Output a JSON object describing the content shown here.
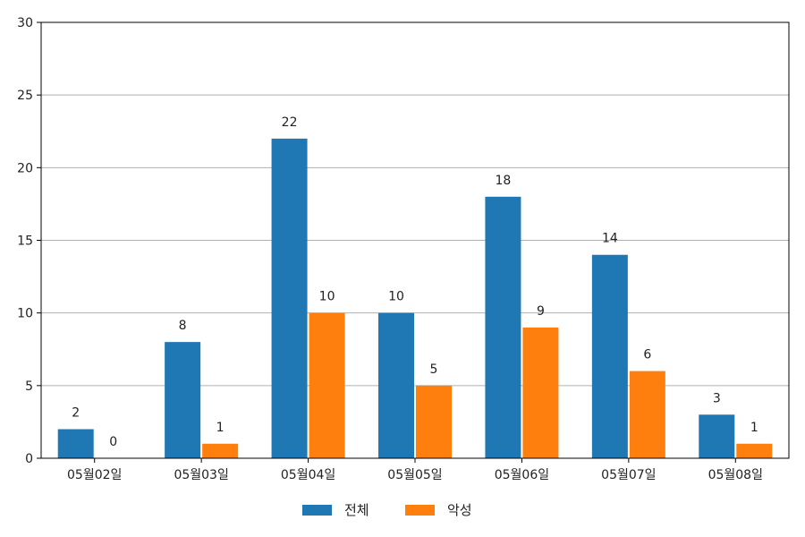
{
  "chart_data": {
    "type": "bar",
    "categories": [
      "05월02일",
      "05월03일",
      "05월04일",
      "05월05일",
      "05월06일",
      "05월07일",
      "05월08일"
    ],
    "series": [
      {
        "name": "전체",
        "color": "#1f77b4",
        "values": [
          2,
          8,
          22,
          10,
          18,
          14,
          3
        ]
      },
      {
        "name": "악성",
        "color": "#ff7f0e",
        "values": [
          0,
          1,
          10,
          5,
          9,
          6,
          1
        ]
      }
    ],
    "title": "",
    "xlabel": "",
    "ylabel": "",
    "ylim": [
      0,
      30
    ],
    "yticks": [
      0,
      5,
      10,
      15,
      20,
      25,
      30
    ],
    "grid": "y",
    "legend_position": "bottom-center",
    "data_labels": true
  }
}
